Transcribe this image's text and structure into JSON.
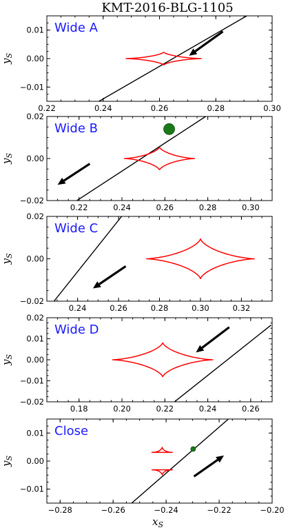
{
  "figure": {
    "title": "KMT-2016-BLG-1105",
    "xlabel": "x_S",
    "ylabel": "y_S"
  },
  "colors": {
    "caustic": "#ff0000",
    "trajectory": "#000000",
    "source": "#1a7a1a",
    "label": "#1a1aff",
    "arrow": "#000000"
  },
  "chart_data": [
    {
      "type": "line",
      "label": "Wide A",
      "xlim": [
        0.22,
        0.3
      ],
      "ylim": [
        -0.015,
        0.015
      ],
      "xticks": [
        0.22,
        0.24,
        0.26,
        0.28,
        0.3
      ],
      "xtick_labels": [
        "0.22",
        "0.24",
        "0.26",
        "0.28",
        "0.30"
      ],
      "yticks": [
        -0.01,
        0.0,
        0.01
      ],
      "ytick_labels": [
        "−0.01",
        "0.00",
        "0.01"
      ],
      "caustic": {
        "center": [
          0.2615,
          0.0
        ],
        "half_width": 0.0135,
        "half_height": 0.0023
      },
      "trajectory": [
        [
          0.2385,
          -0.015
        ],
        [
          0.291,
          0.015
        ]
      ],
      "arrow": {
        "from": [
          0.2825,
          0.0095
        ],
        "to": [
          0.2705,
          0.001
        ]
      },
      "source": null
    },
    {
      "type": "line",
      "label": "Wide B",
      "xlim": [
        0.205,
        0.31
      ],
      "ylim": [
        -0.02,
        0.02
      ],
      "xticks": [
        0.22,
        0.24,
        0.26,
        0.28,
        0.3
      ],
      "xtick_labels": [
        "0.22",
        "0.24",
        "0.26",
        "0.28",
        "0.30"
      ],
      "yticks": [
        -0.02,
        0.0,
        0.02
      ],
      "ytick_labels": [
        "−0.02",
        "0.00",
        "0.02"
      ],
      "caustic": {
        "center": [
          0.2575,
          0.0
        ],
        "half_width": 0.0165,
        "half_height": 0.0055
      },
      "trajectory": [
        [
          0.219,
          -0.02
        ],
        [
          0.279,
          0.02
        ]
      ],
      "arrow": {
        "from": [
          0.225,
          -0.0025
        ],
        "to": [
          0.21,
          -0.0125
        ]
      },
      "source": {
        "x": 0.262,
        "y": 0.014,
        "r": 8
      }
    },
    {
      "type": "line",
      "label": "Wide C",
      "xlim": [
        0.225,
        0.335
      ],
      "ylim": [
        -0.02,
        0.02
      ],
      "xticks": [
        0.24,
        0.26,
        0.28,
        0.3,
        0.32
      ],
      "xtick_labels": [
        "0.24",
        "0.26",
        "0.28",
        "0.30",
        "0.32"
      ],
      "yticks": [
        -0.02,
        0.0,
        0.02
      ],
      "ytick_labels": [
        "−0.02",
        "0.00",
        "0.02"
      ],
      "caustic": {
        "center": [
          0.3,
          0.0
        ],
        "half_width": 0.0265,
        "half_height": 0.0095
      },
      "trajectory": [
        [
          0.2285,
          -0.02
        ],
        [
          0.2615,
          0.02
        ]
      ],
      "arrow": {
        "from": [
          0.2635,
          -0.0035
        ],
        "to": [
          0.2475,
          -0.014
        ]
      },
      "source": null
    },
    {
      "type": "line",
      "label": "Wide D",
      "xlim": [
        0.165,
        0.27
      ],
      "ylim": [
        -0.02,
        0.02
      ],
      "xticks": [
        0.18,
        0.2,
        0.22,
        0.24,
        0.26
      ],
      "xtick_labels": [
        "0.18",
        "0.20",
        "0.22",
        "0.24",
        "0.26"
      ],
      "yticks": [
        -0.02,
        -0.01,
        0.0,
        0.01,
        0.02
      ],
      "ytick_labels": [
        "−0.02",
        "−0.01",
        "0.00",
        "0.01",
        "0.02"
      ],
      "caustic": {
        "center": [
          0.219,
          0.0
        ],
        "half_width": 0.0235,
        "half_height": 0.0082
      },
      "trajectory": [
        [
          0.2245,
          -0.02
        ],
        [
          0.2695,
          0.0165
        ]
      ],
      "arrow": {
        "from": [
          0.25,
          0.0155
        ],
        "to": [
          0.2345,
          0.0035
        ]
      },
      "source": null
    },
    {
      "type": "line",
      "label": "Close",
      "xlim": [
        -0.285,
        -0.2
      ],
      "ylim": [
        -0.015,
        0.015
      ],
      "xticks": [
        -0.28,
        -0.26,
        -0.24,
        -0.22,
        -0.2
      ],
      "xtick_labels": [
        "−0.28",
        "−0.26",
        "−0.24",
        "−0.22",
        "−0.20"
      ],
      "yticks": [
        -0.01,
        0.0,
        0.01
      ],
      "ytick_labels": [
        "−0.01",
        "0.00",
        "0.01"
      ],
      "caustic_triangles": [
        {
          "center": [
            -0.2415,
            0.0037
          ],
          "half_width": 0.004,
          "height": 0.0017,
          "orientation": "up"
        },
        {
          "center": [
            -0.2415,
            -0.0037
          ],
          "half_width": 0.004,
          "height": 0.0017,
          "orientation": "down"
        }
      ],
      "trajectory": [
        [
          -0.253,
          -0.015
        ],
        [
          -0.2165,
          0.015
        ]
      ],
      "arrow": {
        "from": [
          -0.2295,
          -0.0055
        ],
        "to": [
          -0.2182,
          0.002
        ]
      },
      "source": {
        "x": -0.2298,
        "y": 0.0043,
        "r": 3.5
      }
    }
  ]
}
